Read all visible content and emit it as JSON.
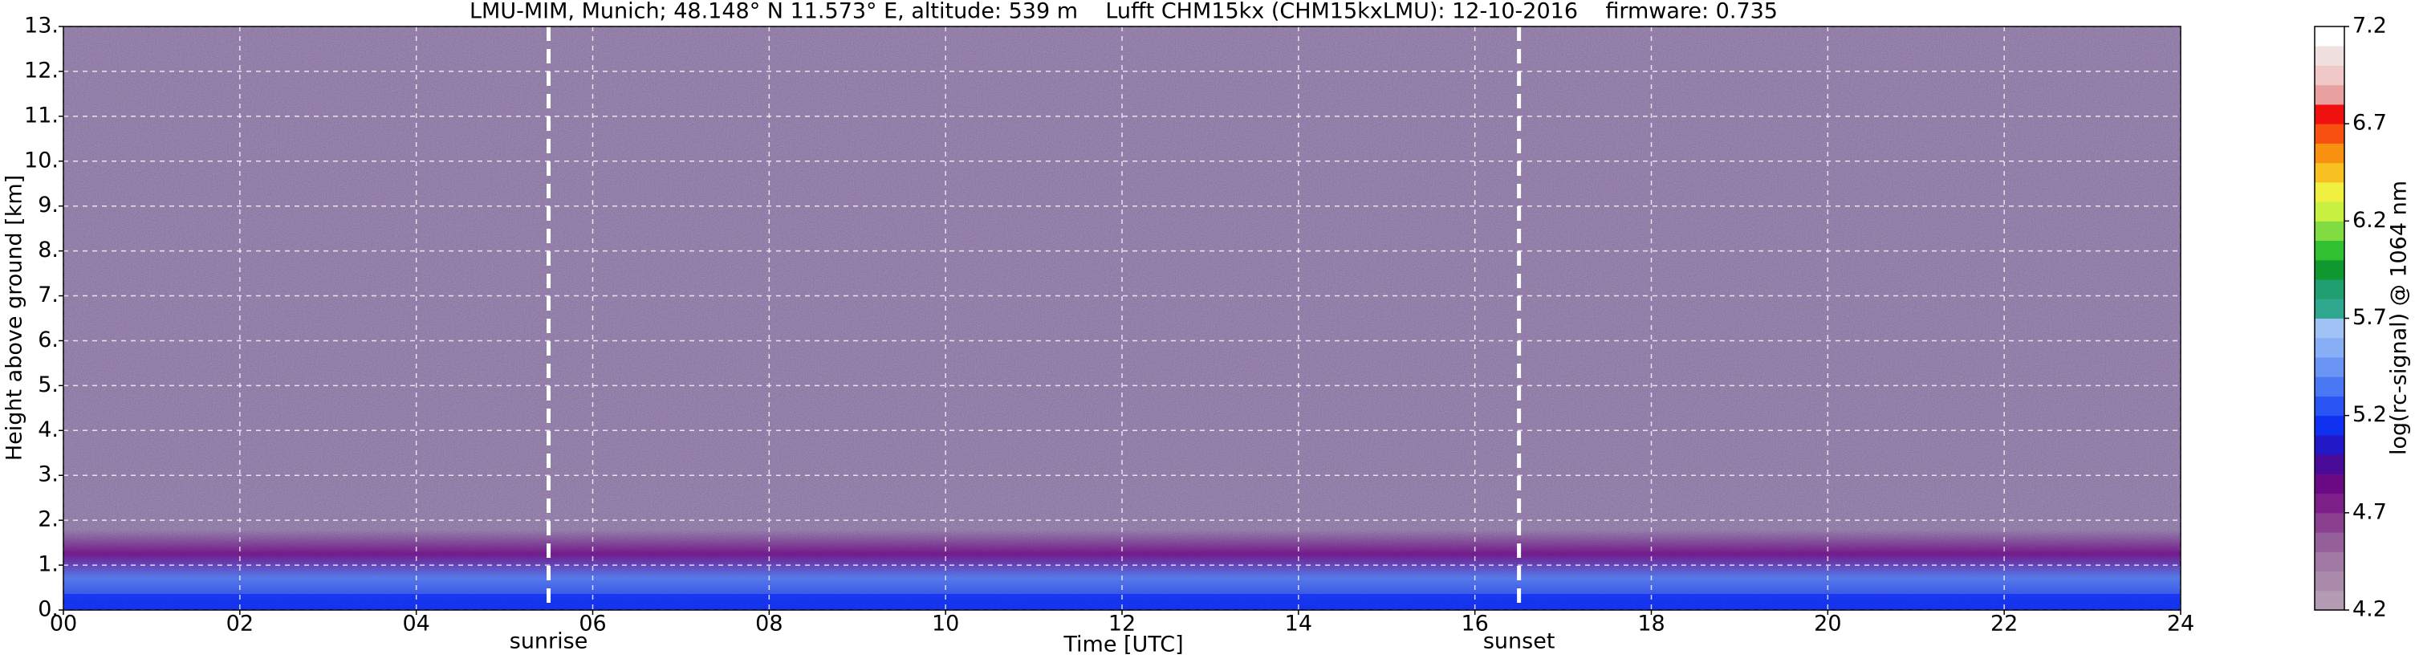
{
  "chart_data": {
    "type": "heatmap",
    "title": "LMU-MIM, Munich; 48.148° N 11.573° E, altitude: 539 m    Lufft CHM15kx (CHM15kxLMU): 12-10-2016    firmware: 0.735",
    "xlabel": "Time [UTC]",
    "ylabel": "Height above ground [km]",
    "xlim": [
      0,
      24
    ],
    "xticks": [
      {
        "value": 0,
        "label": "00"
      },
      {
        "value": 2,
        "label": "02"
      },
      {
        "value": 4,
        "label": "04"
      },
      {
        "value": 6,
        "label": "06"
      },
      {
        "value": 8,
        "label": "08"
      },
      10,
      12,
      14,
      16,
      18,
      20,
      22,
      24
    ],
    "ylim": [
      0,
      13
    ],
    "yticks": [
      {
        "value": 0,
        "label": "0."
      },
      {
        "value": 1,
        "label": "1."
      },
      {
        "value": 2,
        "label": "2."
      },
      {
        "value": 3,
        "label": "3."
      },
      {
        "value": 4,
        "label": "4."
      },
      {
        "value": 5,
        "label": "5."
      },
      {
        "value": 6,
        "label": "6."
      },
      {
        "value": 7,
        "label": "7."
      },
      {
        "value": 8,
        "label": "8."
      },
      {
        "value": 9,
        "label": "9."
      },
      {
        "value": 10,
        "label": "10."
      },
      {
        "value": 11,
        "label": "11."
      },
      {
        "value": 12,
        "label": "12."
      },
      {
        "value": 13,
        "label": "13."
      }
    ],
    "grid": true,
    "annotations": [
      {
        "label": "sunrise",
        "x": 5.5
      },
      {
        "label": "sunset",
        "x": 16.5
      }
    ],
    "colorbar": {
      "label": "log(rc-signal) @ 1064 nm",
      "lim": [
        4.2,
        7.2
      ],
      "ticks": [
        4.2,
        4.7,
        5.2,
        5.7,
        6.2,
        6.7,
        7.2
      ],
      "colors": [
        "#b39bb3",
        "#a98aab",
        "#9f78a3",
        "#955f99",
        "#8a408f",
        "#7d1f88",
        "#6c0a86",
        "#4a0a98",
        "#2318c8",
        "#1030f0",
        "#2a55f5",
        "#4a78f5",
        "#6a95f5",
        "#88aef5",
        "#a0c2f5",
        "#30a890",
        "#20a070",
        "#109830",
        "#30c030",
        "#80dc40",
        "#c8f040",
        "#f0f040",
        "#f8c020",
        "#f89010",
        "#f85010",
        "#f01010",
        "#e8a0a0",
        "#f0c8c8",
        "#f0e0e0",
        "#ffffff"
      ]
    }
  }
}
